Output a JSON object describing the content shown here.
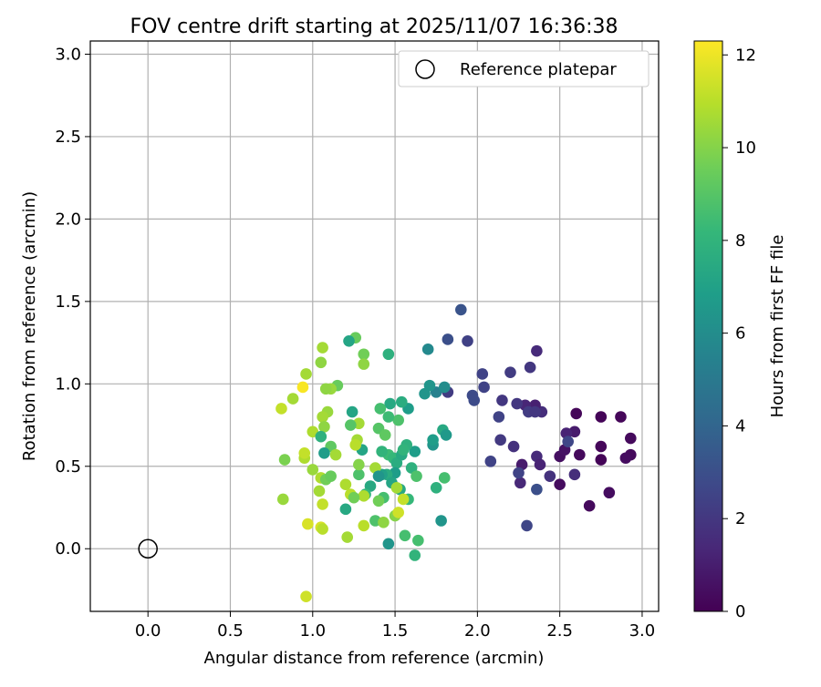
{
  "chart_data": {
    "type": "scatter",
    "title": "FOV centre drift starting at 2025/11/07 16:36:38",
    "xlabel": "Angular distance from reference (arcmin)",
    "ylabel": "Rotation from reference (arcmin)",
    "xlim": [
      -0.35,
      3.1
    ],
    "ylim": [
      -0.38,
      3.08
    ],
    "xticks": [
      0.0,
      0.5,
      1.0,
      1.5,
      2.0,
      2.5,
      3.0
    ],
    "yticks": [
      0.0,
      0.5,
      1.0,
      1.5,
      2.0,
      2.5,
      3.0
    ],
    "xtick_labels": [
      "0.0",
      "0.5",
      "1.0",
      "1.5",
      "2.0",
      "2.5",
      "3.0"
    ],
    "ytick_labels": [
      "0.0",
      "0.5",
      "1.0",
      "1.5",
      "2.0",
      "2.5",
      "3.0"
    ],
    "grid": true,
    "legend": {
      "placement": "top-right",
      "entries": [
        "Reference platepar"
      ]
    },
    "reference_point": {
      "x": 0.0,
      "y": 0.0,
      "marker": "open-circle",
      "label": "Reference platepar"
    },
    "colorbar": {
      "label": "Hours from first FF file",
      "range": [
        0,
        12.3
      ],
      "ticks": [
        0,
        2,
        4,
        6,
        8,
        10,
        12
      ],
      "tick_labels": [
        "0",
        "2",
        "4",
        "6",
        "8",
        "10",
        "12"
      ],
      "colormap": "viridis"
    },
    "series": [
      {
        "points": [
          {
            "x": 2.6,
            "y": 0.82,
            "t": 0.2
          },
          {
            "x": 2.75,
            "y": 0.8,
            "t": 0.1
          },
          {
            "x": 2.87,
            "y": 0.8,
            "t": 0.2
          },
          {
            "x": 2.93,
            "y": 0.67,
            "t": 0.3
          },
          {
            "x": 2.75,
            "y": 0.62,
            "t": 0.2
          },
          {
            "x": 2.93,
            "y": 0.57,
            "t": 0.3
          },
          {
            "x": 2.9,
            "y": 0.55,
            "t": 0.4
          },
          {
            "x": 2.75,
            "y": 0.54,
            "t": 0.1
          },
          {
            "x": 2.62,
            "y": 0.57,
            "t": 0.3
          },
          {
            "x": 2.5,
            "y": 0.56,
            "t": 0.5
          },
          {
            "x": 2.53,
            "y": 0.6,
            "t": 0.6
          },
          {
            "x": 2.59,
            "y": 0.71,
            "t": 0.9
          },
          {
            "x": 2.54,
            "y": 0.7,
            "t": 1.2
          },
          {
            "x": 2.5,
            "y": 0.39,
            "t": 0.4
          },
          {
            "x": 2.68,
            "y": 0.26,
            "t": 0.3
          },
          {
            "x": 2.8,
            "y": 0.34,
            "t": 0.4
          },
          {
            "x": 2.59,
            "y": 0.45,
            "t": 1.6
          },
          {
            "x": 2.44,
            "y": 0.44,
            "t": 1.8
          },
          {
            "x": 2.55,
            "y": 0.65,
            "t": 2.6
          },
          {
            "x": 2.36,
            "y": 0.56,
            "t": 1.5
          },
          {
            "x": 2.38,
            "y": 0.51,
            "t": 1.2
          },
          {
            "x": 2.27,
            "y": 0.51,
            "t": 0.9
          },
          {
            "x": 2.26,
            "y": 0.4,
            "t": 1.4
          },
          {
            "x": 2.25,
            "y": 0.46,
            "t": 2.5
          },
          {
            "x": 2.36,
            "y": 0.36,
            "t": 3.0
          },
          {
            "x": 2.3,
            "y": 0.14,
            "t": 2.6
          },
          {
            "x": 2.39,
            "y": 0.83,
            "t": 1.6
          },
          {
            "x": 2.35,
            "y": 0.87,
            "t": 1.1
          },
          {
            "x": 2.29,
            "y": 0.87,
            "t": 1.3
          },
          {
            "x": 2.31,
            "y": 0.83,
            "t": 2.2
          },
          {
            "x": 2.35,
            "y": 0.83,
            "t": 2.0
          },
          {
            "x": 2.24,
            "y": 0.88,
            "t": 2.0
          },
          {
            "x": 2.15,
            "y": 0.9,
            "t": 2.0
          },
          {
            "x": 2.13,
            "y": 0.8,
            "t": 2.5
          },
          {
            "x": 2.22,
            "y": 0.62,
            "t": 1.8
          },
          {
            "x": 2.14,
            "y": 0.66,
            "t": 2.1
          },
          {
            "x": 2.08,
            "y": 0.53,
            "t": 2.5
          },
          {
            "x": 2.36,
            "y": 1.2,
            "t": 1.5
          },
          {
            "x": 2.32,
            "y": 1.1,
            "t": 2.0
          },
          {
            "x": 2.2,
            "y": 1.07,
            "t": 2.2
          },
          {
            "x": 2.03,
            "y": 1.06,
            "t": 2.5
          },
          {
            "x": 2.04,
            "y": 0.98,
            "t": 2.5
          },
          {
            "x": 1.97,
            "y": 0.93,
            "t": 2.8
          },
          {
            "x": 1.98,
            "y": 0.9,
            "t": 2.8
          },
          {
            "x": 1.94,
            "y": 1.26,
            "t": 2.4
          },
          {
            "x": 1.9,
            "y": 1.45,
            "t": 3.2
          },
          {
            "x": 1.82,
            "y": 1.27,
            "t": 3.0
          },
          {
            "x": 1.82,
            "y": 0.95,
            "t": 2.2
          },
          {
            "x": 1.75,
            "y": 0.95,
            "t": 5.4
          },
          {
            "x": 1.8,
            "y": 0.98,
            "t": 6.0
          },
          {
            "x": 1.71,
            "y": 0.99,
            "t": 6.4
          },
          {
            "x": 1.68,
            "y": 0.94,
            "t": 6.4
          },
          {
            "x": 1.7,
            "y": 1.21,
            "t": 5.8
          },
          {
            "x": 1.79,
            "y": 0.72,
            "t": 7.4
          },
          {
            "x": 1.81,
            "y": 0.69,
            "t": 6.6
          },
          {
            "x": 1.73,
            "y": 0.63,
            "t": 6.4
          },
          {
            "x": 1.73,
            "y": 0.66,
            "t": 6.8
          },
          {
            "x": 1.78,
            "y": 0.17,
            "t": 6.4
          },
          {
            "x": 1.8,
            "y": 0.43,
            "t": 8.6
          },
          {
            "x": 1.75,
            "y": 0.37,
            "t": 7.8
          },
          {
            "x": 1.62,
            "y": 0.59,
            "t": 6.8
          },
          {
            "x": 1.6,
            "y": 0.49,
            "t": 7.8
          },
          {
            "x": 1.57,
            "y": 0.63,
            "t": 7.8
          },
          {
            "x": 1.58,
            "y": 0.85,
            "t": 6.8
          },
          {
            "x": 1.54,
            "y": 0.89,
            "t": 7.6
          },
          {
            "x": 1.52,
            "y": 0.78,
            "t": 8.8
          },
          {
            "x": 1.47,
            "y": 0.88,
            "t": 7.4
          },
          {
            "x": 1.46,
            "y": 0.8,
            "t": 8.4
          },
          {
            "x": 1.41,
            "y": 0.85,
            "t": 8.6
          },
          {
            "x": 1.4,
            "y": 0.73,
            "t": 9.0
          },
          {
            "x": 1.44,
            "y": 0.69,
            "t": 9.2
          },
          {
            "x": 1.46,
            "y": 0.57,
            "t": 8.4
          },
          {
            "x": 1.42,
            "y": 0.59,
            "t": 8.0
          },
          {
            "x": 1.49,
            "y": 0.55,
            "t": 8.2
          },
          {
            "x": 1.51,
            "y": 0.52,
            "t": 7.6
          },
          {
            "x": 1.54,
            "y": 0.57,
            "t": 7.4
          },
          {
            "x": 1.55,
            "y": 0.6,
            "t": 8.0
          },
          {
            "x": 1.5,
            "y": 0.46,
            "t": 6.8
          },
          {
            "x": 1.45,
            "y": 0.45,
            "t": 7.6
          },
          {
            "x": 1.48,
            "y": 0.4,
            "t": 7.2
          },
          {
            "x": 1.53,
            "y": 0.36,
            "t": 7.4
          },
          {
            "x": 1.58,
            "y": 0.3,
            "t": 8.2
          },
          {
            "x": 1.63,
            "y": 0.44,
            "t": 8.8
          },
          {
            "x": 1.42,
            "y": 0.45,
            "t": 7.0
          },
          {
            "x": 1.38,
            "y": 0.49,
            "t": 10.6
          },
          {
            "x": 1.4,
            "y": 0.44,
            "t": 6.4
          },
          {
            "x": 1.43,
            "y": 0.31,
            "t": 8.6
          },
          {
            "x": 1.38,
            "y": 0.17,
            "t": 8.8
          },
          {
            "x": 1.43,
            "y": 0.16,
            "t": 10.2
          },
          {
            "x": 1.5,
            "y": 0.2,
            "t": 10.0
          },
          {
            "x": 1.52,
            "y": 0.22,
            "t": 11.4
          },
          {
            "x": 1.46,
            "y": 0.03,
            "t": 6.4
          },
          {
            "x": 1.56,
            "y": 0.08,
            "t": 8.6
          },
          {
            "x": 1.64,
            "y": 0.05,
            "t": 8.6
          },
          {
            "x": 1.62,
            "y": -0.04,
            "t": 8.0
          },
          {
            "x": 1.55,
            "y": 0.3,
            "t": 11.2
          },
          {
            "x": 1.51,
            "y": 0.37,
            "t": 10.6
          },
          {
            "x": 1.46,
            "y": 1.18,
            "t": 7.8
          },
          {
            "x": 1.4,
            "y": 0.29,
            "t": 9.6
          },
          {
            "x": 1.35,
            "y": 0.38,
            "t": 7.4
          },
          {
            "x": 1.32,
            "y": 0.33,
            "t": 8.2
          },
          {
            "x": 1.31,
            "y": 0.32,
            "t": 10.8
          },
          {
            "x": 1.31,
            "y": 0.14,
            "t": 11.0
          },
          {
            "x": 1.28,
            "y": 0.45,
            "t": 8.8
          },
          {
            "x": 1.28,
            "y": 0.51,
            "t": 10.0
          },
          {
            "x": 1.3,
            "y": 0.6,
            "t": 7.2
          },
          {
            "x": 1.27,
            "y": 0.66,
            "t": 10.6
          },
          {
            "x": 1.26,
            "y": 0.63,
            "t": 11.0
          },
          {
            "x": 1.28,
            "y": 0.76,
            "t": 10.6
          },
          {
            "x": 1.24,
            "y": 0.83,
            "t": 7.2
          },
          {
            "x": 1.23,
            "y": 0.75,
            "t": 9.0
          },
          {
            "x": 1.31,
            "y": 1.18,
            "t": 9.6
          },
          {
            "x": 1.31,
            "y": 1.12,
            "t": 10.2
          },
          {
            "x": 1.26,
            "y": 1.28,
            "t": 9.4
          },
          {
            "x": 1.22,
            "y": 1.26,
            "t": 7.2
          },
          {
            "x": 1.15,
            "y": 0.99,
            "t": 9.4
          },
          {
            "x": 1.11,
            "y": 0.97,
            "t": 10.4
          },
          {
            "x": 1.08,
            "y": 0.97,
            "t": 10.2
          },
          {
            "x": 1.09,
            "y": 0.83,
            "t": 10.4
          },
          {
            "x": 1.06,
            "y": 0.8,
            "t": 10.6
          },
          {
            "x": 1.07,
            "y": 0.74,
            "t": 10.2
          },
          {
            "x": 1.0,
            "y": 0.71,
            "t": 10.8
          },
          {
            "x": 1.05,
            "y": 0.68,
            "t": 7.8
          },
          {
            "x": 1.11,
            "y": 0.62,
            "t": 9.2
          },
          {
            "x": 1.14,
            "y": 0.57,
            "t": 10.6
          },
          {
            "x": 1.07,
            "y": 0.58,
            "t": 6.8
          },
          {
            "x": 0.95,
            "y": 0.55,
            "t": 10.8
          },
          {
            "x": 0.95,
            "y": 0.58,
            "t": 11.2
          },
          {
            "x": 1.0,
            "y": 0.48,
            "t": 10.4
          },
          {
            "x": 1.05,
            "y": 0.43,
            "t": 10.8
          },
          {
            "x": 1.08,
            "y": 0.42,
            "t": 9.6
          },
          {
            "x": 1.11,
            "y": 0.44,
            "t": 9.4
          },
          {
            "x": 1.04,
            "y": 0.35,
            "t": 10.6
          },
          {
            "x": 1.06,
            "y": 0.27,
            "t": 11.2
          },
          {
            "x": 1.2,
            "y": 0.39,
            "t": 10.8
          },
          {
            "x": 1.23,
            "y": 0.33,
            "t": 11.0
          },
          {
            "x": 1.25,
            "y": 0.31,
            "t": 9.6
          },
          {
            "x": 1.2,
            "y": 0.24,
            "t": 7.4
          },
          {
            "x": 1.21,
            "y": 0.07,
            "t": 10.6
          },
          {
            "x": 1.05,
            "y": 0.13,
            "t": 11.6
          },
          {
            "x": 1.06,
            "y": 0.12,
            "t": 11.0
          },
          {
            "x": 0.97,
            "y": 0.15,
            "t": 11.6
          },
          {
            "x": 0.96,
            "y": -0.29,
            "t": 11.4
          },
          {
            "x": 0.82,
            "y": 0.3,
            "t": 10.4
          },
          {
            "x": 0.83,
            "y": 0.54,
            "t": 9.8
          },
          {
            "x": 0.81,
            "y": 0.85,
            "t": 11.2
          },
          {
            "x": 0.88,
            "y": 0.91,
            "t": 10.6
          },
          {
            "x": 0.96,
            "y": 1.06,
            "t": 10.6
          },
          {
            "x": 0.94,
            "y": 0.98,
            "t": 12.2
          },
          {
            "x": 1.05,
            "y": 1.13,
            "t": 10.2
          },
          {
            "x": 1.06,
            "y": 1.22,
            "t": 10.6
          }
        ]
      }
    ]
  }
}
